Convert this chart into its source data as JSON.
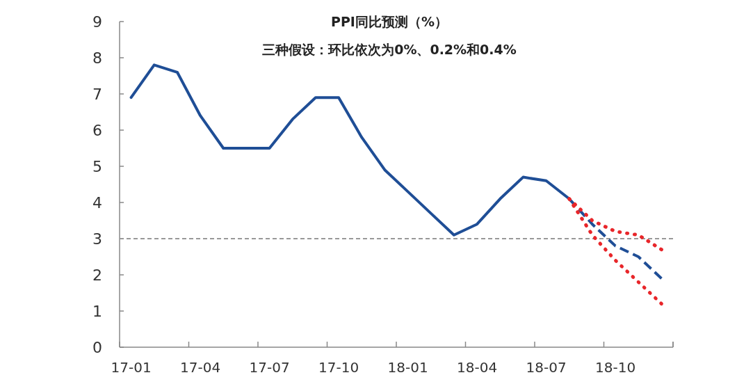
{
  "chart_data": {
    "type": "line",
    "title": "PPI同比预测（%）",
    "subtitle": "三种假设：环比依次为0%、0.2%和0.4%",
    "categories": [
      "17-01",
      null,
      null,
      "17-04",
      null,
      null,
      "17-07",
      null,
      null,
      "17-10",
      null,
      null,
      "18-01",
      null,
      null,
      "18-04",
      null,
      null,
      "18-07",
      null,
      null,
      "18-10",
      null,
      null
    ],
    "series": [
      {
        "color": "#1f4e96",
        "line_style": "solid",
        "values": [
          6.9,
          7.8,
          7.6,
          6.4,
          5.5,
          5.5,
          5.5,
          6.3,
          6.9,
          6.9,
          5.8,
          4.9,
          4.3,
          3.7,
          3.1,
          3.4,
          4.1,
          4.7,
          4.6,
          4.1,
          null,
          null,
          null,
          null
        ]
      },
      {
        "color": "#1f4e96",
        "line_style": "dashed",
        "values": [
          null,
          null,
          null,
          null,
          null,
          null,
          null,
          null,
          null,
          null,
          null,
          null,
          null,
          null,
          null,
          null,
          null,
          null,
          null,
          4.1,
          3.4,
          2.8,
          2.5,
          1.9
        ]
      },
      {
        "color": "#e8262a",
        "line_style": "dotted",
        "values": [
          null,
          null,
          null,
          null,
          null,
          null,
          null,
          null,
          null,
          null,
          null,
          null,
          null,
          null,
          null,
          null,
          null,
          null,
          null,
          4.1,
          3.5,
          3.2,
          3.1,
          2.7
        ]
      },
      {
        "color": "#e8262a",
        "line_style": "dotted",
        "values": [
          null,
          null,
          null,
          null,
          null,
          null,
          null,
          null,
          null,
          null,
          null,
          null,
          null,
          null,
          null,
          null,
          null,
          null,
          null,
          4.1,
          3.1,
          2.4,
          1.8,
          1.2
        ]
      }
    ],
    "ylim": [
      0,
      9
    ],
    "yticks": [
      0,
      1,
      2,
      3,
      4,
      5,
      6,
      7,
      8,
      9
    ],
    "ref_lines": [
      {
        "axis": "y",
        "value": 3,
        "color": "#999999",
        "line_style": "dashed"
      }
    ],
    "grid": false
  }
}
